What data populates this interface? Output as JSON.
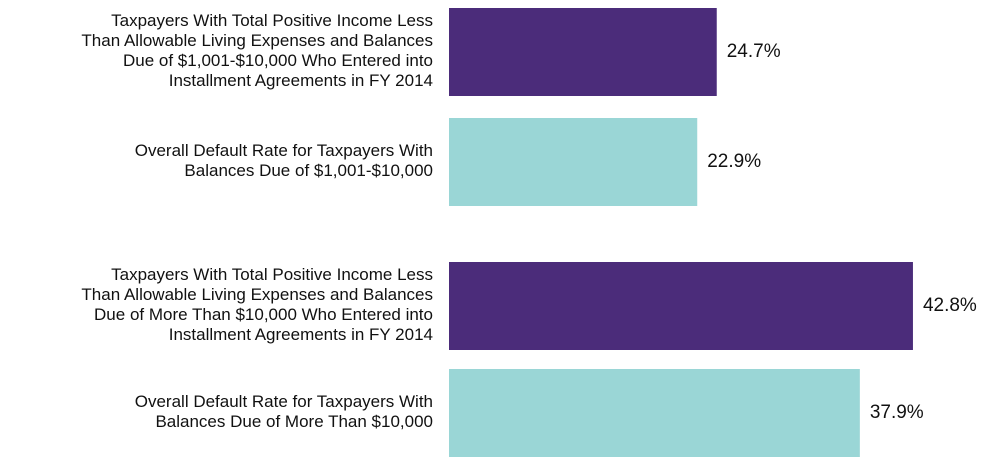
{
  "chart_data": {
    "type": "barh",
    "categories": [
      "Taxpayers With Total Positive Income Less\nThan Allowable Living Expenses and Balances\nDue of $1,001-$10,000 Who Entered into\nInstallment Agreements in FY 2014",
      "Overall Default Rate for Taxpayers With\nBalances Due of $1,001-$10,000",
      "Taxpayers With Total Positive Income Less\nThan Allowable Living Expenses and Balances\nDue of More Than $10,000 Who Entered into\nInstallment Agreements in FY 2014",
      "Overall Default Rate for Taxpayers With\nBalances Due of More Than $10,000"
    ],
    "values": [
      24.7,
      22.9,
      42.8,
      37.9
    ],
    "value_labels": [
      "24.7%",
      "22.9%",
      "42.8%",
      "37.9%"
    ],
    "colors": [
      "#4b2c7a",
      "#9ad6d6",
      "#4b2c7a",
      "#9ad6d6"
    ],
    "xlim": [
      0,
      50
    ]
  }
}
